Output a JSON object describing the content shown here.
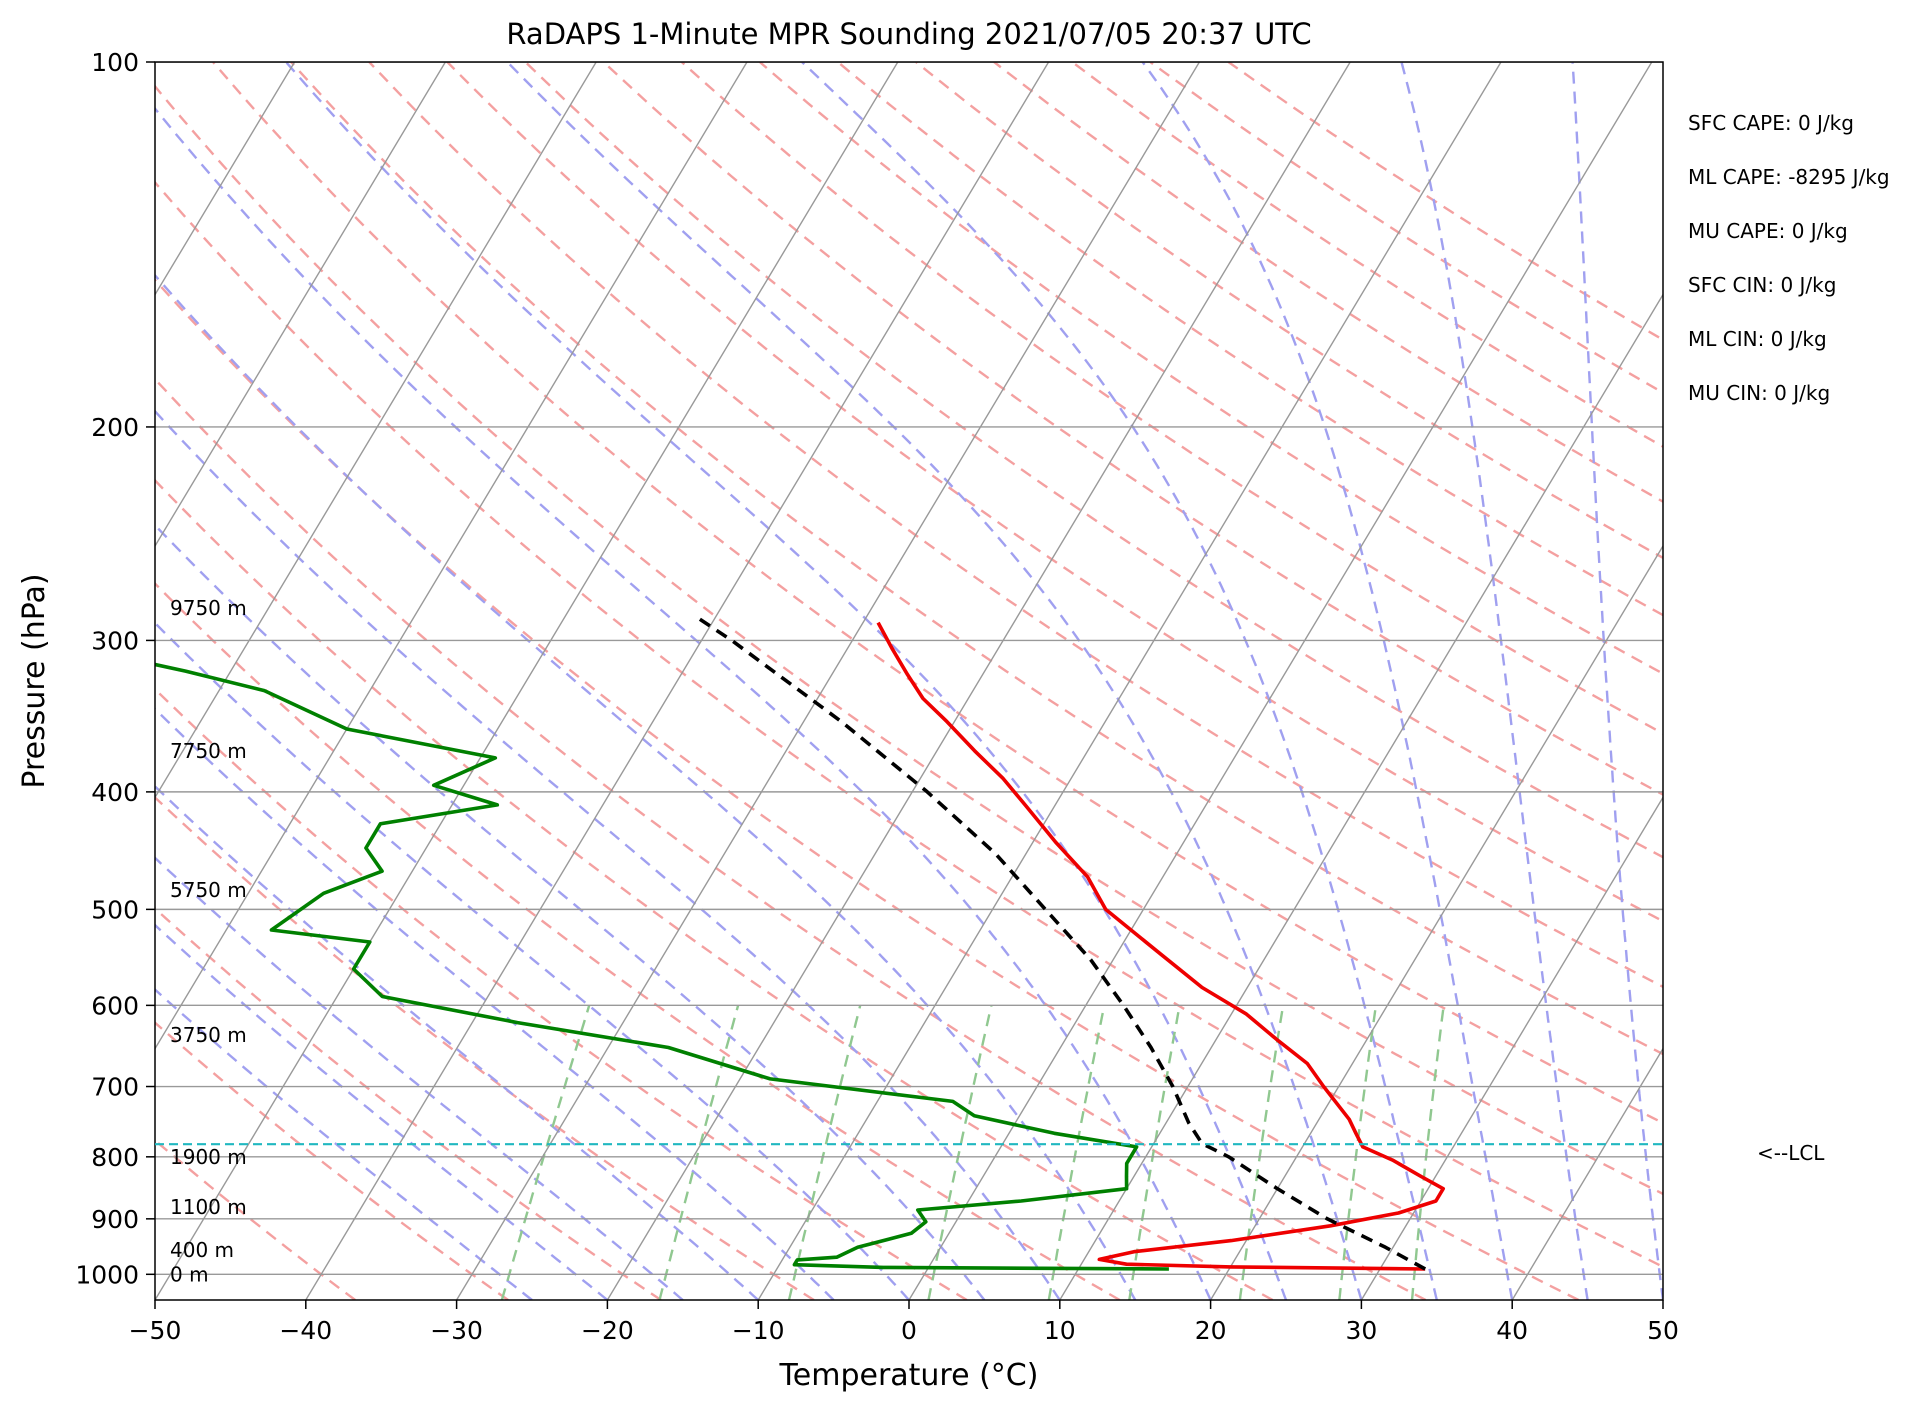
{
  "chart_data": {
    "type": "line",
    "title": "RaDAPS 1-Minute MPR Sounding 2021/07/05 20:37 UTC",
    "xlabel": "Temperature (°C)",
    "ylabel": "Pressure (hPa)",
    "xlim": [
      -50,
      50
    ],
    "ylim": [
      1050,
      100
    ],
    "y_scale": "log",
    "x_ticks": [
      -50,
      -40,
      -30,
      -20,
      -10,
      0,
      10,
      20,
      30,
      40,
      50
    ],
    "x_tick_labels": [
      "−50",
      "−40",
      "−30",
      "−20",
      "−10",
      "0",
      "10",
      "20",
      "30",
      "40",
      "50"
    ],
    "y_ticks": [
      100,
      200,
      300,
      400,
      500,
      600,
      700,
      800,
      900,
      1000
    ],
    "y_tick_labels": [
      "100",
      "200",
      "300",
      "400",
      "500",
      "600",
      "700",
      "800",
      "900",
      "1000"
    ],
    "grid": true,
    "skew": "skew-T",
    "series": [
      {
        "type": "temperature",
        "color": "#ee0000",
        "points": [
          {
            "p": 990,
            "t": 33.0
          },
          {
            "p": 986,
            "t": 20.0
          },
          {
            "p": 981,
            "t": 13.0
          },
          {
            "p": 972,
            "t": 11.0
          },
          {
            "p": 958,
            "t": 13.0
          },
          {
            "p": 938,
            "t": 19.0
          },
          {
            "p": 912,
            "t": 25.0
          },
          {
            "p": 890,
            "t": 29.0
          },
          {
            "p": 870,
            "t": 31.0
          },
          {
            "p": 850,
            "t": 31.0
          },
          {
            "p": 830,
            "t": 29.0
          },
          {
            "p": 805,
            "t": 26.5
          },
          {
            "p": 785,
            "t": 24.0
          },
          {
            "p": 765,
            "t": 23.0
          },
          {
            "p": 745,
            "t": 22.0
          },
          {
            "p": 700,
            "t": 19.0
          },
          {
            "p": 670,
            "t": 17.0
          },
          {
            "p": 640,
            "t": 14.0
          },
          {
            "p": 610,
            "t": 11.0
          },
          {
            "p": 580,
            "t": 7.0
          },
          {
            "p": 545,
            "t": 3.0
          },
          {
            "p": 520,
            "t": 0.0
          },
          {
            "p": 500,
            "t": -2.5
          },
          {
            "p": 470,
            "t": -5.0
          },
          {
            "p": 440,
            "t": -8.5
          },
          {
            "p": 410,
            "t": -12.0
          },
          {
            "p": 390,
            "t": -14.5
          },
          {
            "p": 370,
            "t": -17.5
          },
          {
            "p": 350,
            "t": -20.5
          },
          {
            "p": 335,
            "t": -23.0
          },
          {
            "p": 320,
            "t": -25.0
          },
          {
            "p": 305,
            "t": -27.0
          },
          {
            "p": 290,
            "t": -29.0
          }
        ]
      },
      {
        "type": "dewpoint",
        "color": "#008000",
        "points": [
          {
            "p": 990,
            "t": 16.0
          },
          {
            "p": 987,
            "t": -3.0
          },
          {
            "p": 982,
            "t": -9.0
          },
          {
            "p": 973,
            "t": -9.0
          },
          {
            "p": 968,
            "t": -6.5
          },
          {
            "p": 950,
            "t": -5.5
          },
          {
            "p": 925,
            "t": -2.5
          },
          {
            "p": 905,
            "t": -2.0
          },
          {
            "p": 885,
            "t": -3.0
          },
          {
            "p": 870,
            "t": 3.5
          },
          {
            "p": 850,
            "t": 10.0
          },
          {
            "p": 830,
            "t": 9.5
          },
          {
            "p": 810,
            "t": 9.0
          },
          {
            "p": 785,
            "t": 9.0
          },
          {
            "p": 765,
            "t": 3.0
          },
          {
            "p": 740,
            "t": -3.0
          },
          {
            "p": 720,
            "t": -5.0
          },
          {
            "p": 690,
            "t": -18.0
          },
          {
            "p": 650,
            "t": -26.0
          },
          {
            "p": 620,
            "t": -37.0
          },
          {
            "p": 590,
            "t": -47.0
          },
          {
            "p": 560,
            "t": -50.0
          },
          {
            "p": 532,
            "t": -50.0
          },
          {
            "p": 520,
            "t": -57.0
          },
          {
            "p": 485,
            "t": -55.0
          },
          {
            "p": 465,
            "t": -52.0
          },
          {
            "p": 445,
            "t": -54.0
          },
          {
            "p": 425,
            "t": -54.0
          },
          {
            "p": 410,
            "t": -47.0
          },
          {
            "p": 395,
            "t": -52.0
          },
          {
            "p": 375,
            "t": -49.0
          },
          {
            "p": 355,
            "t": -60.0
          },
          {
            "p": 330,
            "t": -67.0
          },
          {
            "p": 318,
            "t": -73.0
          },
          {
            "p": 306,
            "t": -80.0
          }
        ]
      },
      {
        "type": "parcel",
        "color": "#000000",
        "points": [
          {
            "p": 990,
            "t": 33.0
          },
          {
            "p": 950,
            "t": 29.5
          },
          {
            "p": 900,
            "t": 24.5
          },
          {
            "p": 850,
            "t": 20.0
          },
          {
            "p": 800,
            "t": 15.5
          },
          {
            "p": 780,
            "t": 13.2
          },
          {
            "p": 750,
            "t": 11.5
          },
          {
            "p": 700,
            "t": 9.0
          },
          {
            "p": 650,
            "t": 6.0
          },
          {
            "p": 600,
            "t": 2.5
          },
          {
            "p": 550,
            "t": -1.5
          },
          {
            "p": 500,
            "t": -6.5
          },
          {
            "p": 450,
            "t": -12.0
          },
          {
            "p": 400,
            "t": -19.0
          },
          {
            "p": 350,
            "t": -27.5
          },
          {
            "p": 300,
            "t": -38.0
          },
          {
            "p": 288,
            "t": -41.0
          }
        ]
      }
    ],
    "lcl": {
      "p": 781,
      "label": "<--LCL",
      "color": "#20b8c0"
    },
    "height_labels": [
      {
        "p": 1000,
        "label": "0 m"
      },
      {
        "p": 955,
        "label": "400 m"
      },
      {
        "p": 880,
        "label": "1100 m"
      },
      {
        "p": 800,
        "label": "1900 m"
      },
      {
        "p": 635,
        "label": "3750 m"
      },
      {
        "p": 482,
        "label": "5750 m"
      },
      {
        "p": 370,
        "label": "7750 m"
      },
      {
        "p": 282,
        "label": "9750 m"
      }
    ],
    "annotations": [
      "SFC CAPE: 0 J/kg",
      "ML CAPE: -8295 J/kg",
      "MU CAPE: 0 J/kg",
      "SFC CIN: 0 J/kg",
      "ML CIN: 0 J/kg",
      "MU CIN: 0 J/kg"
    ],
    "background_lines": {
      "dry_adiabat_color": "#f4a0a0",
      "moist_adiabat_color": "#a0a0f0",
      "mixing_ratio_color": "#90c890",
      "isotherm_color": "#999999"
    }
  }
}
